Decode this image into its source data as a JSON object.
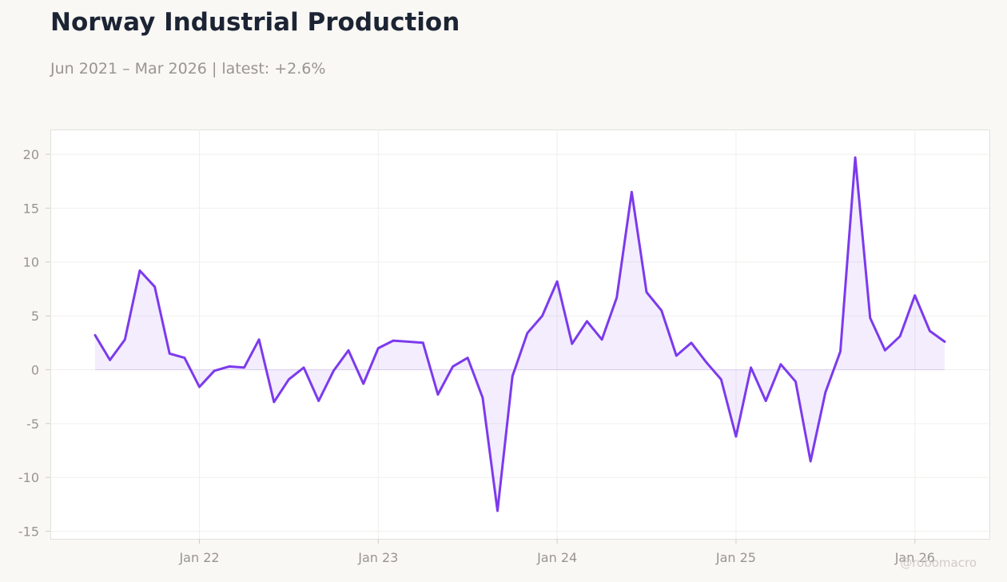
{
  "header": {
    "title": "Norway Industrial Production",
    "subtitle": "Jun 2021 – Mar 2026 | latest: +2.6%"
  },
  "watermark": "@robomacro",
  "colors": {
    "line": "#7c3aed",
    "fill": "#7c3aed",
    "plot_background": "#ffffff",
    "page_background": "#f9f8f5"
  },
  "chart_data": {
    "type": "area",
    "title": "Norway Industrial Production",
    "subtitle": "Jun 2021 – Mar 2026 | latest: +2.6%",
    "xlabel": "",
    "ylabel": "",
    "ylim": [
      -15.7,
      22.3
    ],
    "xlim": [
      "2021-03",
      "2026-06"
    ],
    "grid": true,
    "legend": "none",
    "x_ticks": [
      {
        "date": "2022-01",
        "label": "Jan 22"
      },
      {
        "date": "2023-01",
        "label": "Jan 23"
      },
      {
        "date": "2024-01",
        "label": "Jan 24"
      },
      {
        "date": "2025-01",
        "label": "Jan 25"
      },
      {
        "date": "2026-01",
        "label": "Jan 26"
      }
    ],
    "y_ticks": [
      -15,
      -10,
      -5,
      0,
      5,
      10,
      15,
      20
    ],
    "x": [
      "2021-06",
      "2021-07",
      "2021-08",
      "2021-09",
      "2021-10",
      "2021-11",
      "2021-12",
      "2022-01",
      "2022-02",
      "2022-03",
      "2022-04",
      "2022-05",
      "2022-06",
      "2022-07",
      "2022-08",
      "2022-09",
      "2022-10",
      "2022-11",
      "2022-12",
      "2023-01",
      "2023-02",
      "2023-03",
      "2023-04",
      "2023-05",
      "2023-06",
      "2023-07",
      "2023-08",
      "2023-09",
      "2023-10",
      "2023-11",
      "2023-12",
      "2024-01",
      "2024-02",
      "2024-03",
      "2024-04",
      "2024-05",
      "2024-06",
      "2024-07",
      "2024-08",
      "2024-09",
      "2024-10",
      "2024-11",
      "2024-12",
      "2025-01",
      "2025-02",
      "2025-03",
      "2025-04",
      "2025-05",
      "2025-06",
      "2025-07",
      "2025-08",
      "2025-09",
      "2025-10",
      "2025-11",
      "2025-12",
      "2026-01",
      "2026-02",
      "2026-03"
    ],
    "values": [
      3.2,
      0.9,
      2.8,
      9.2,
      7.7,
      1.5,
      1.1,
      -1.6,
      -0.1,
      0.3,
      0.2,
      2.8,
      -3.0,
      -0.9,
      0.2,
      -2.9,
      -0.1,
      1.8,
      -1.3,
      2.0,
      2.7,
      2.6,
      2.5,
      -2.3,
      0.3,
      1.1,
      -2.6,
      -13.1,
      -0.6,
      3.4,
      5.0,
      8.2,
      2.4,
      4.5,
      2.8,
      6.7,
      16.5,
      7.2,
      5.5,
      1.3,
      2.5,
      0.7,
      -0.9,
      -6.2,
      0.2,
      -2.9,
      0.5,
      -1.1,
      -8.5,
      -2.1,
      1.7,
      19.7,
      4.8,
      1.8,
      3.1,
      6.9,
      3.6,
      2.6
    ]
  }
}
